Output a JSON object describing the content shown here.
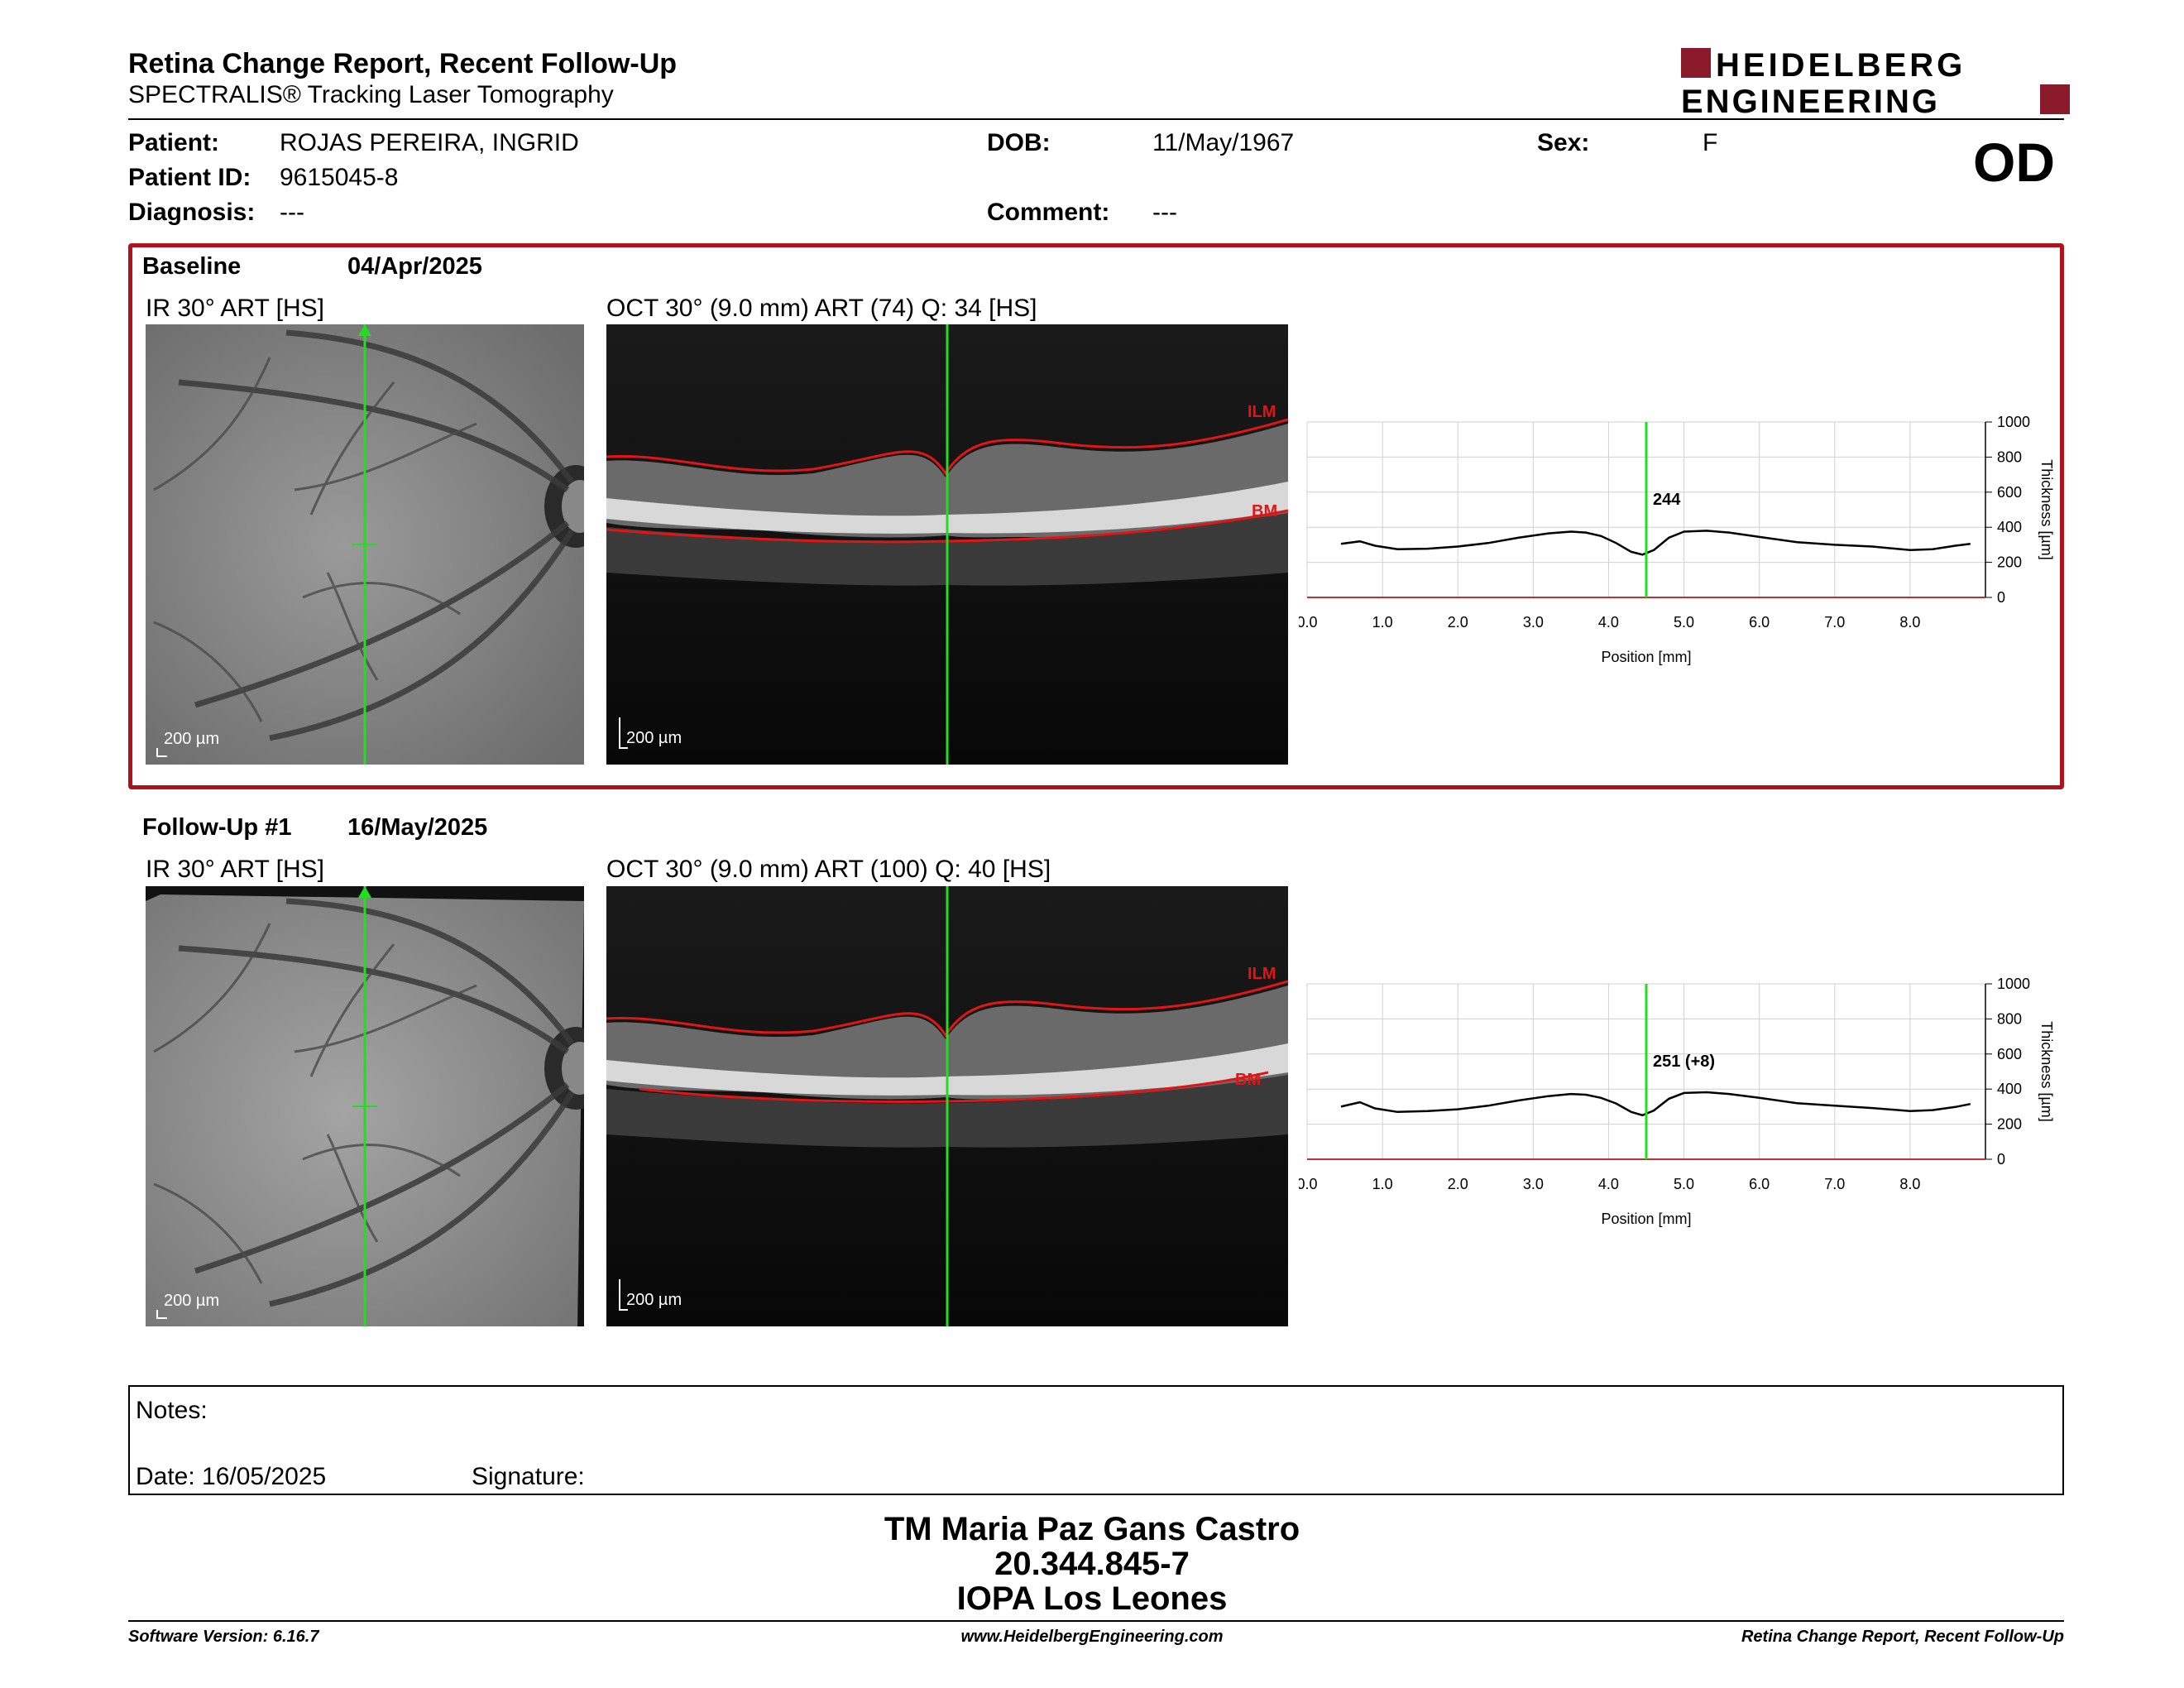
{
  "header": {
    "title": "Retina Change Report, Recent Follow-Up",
    "subtitle": "SPECTRALIS® Tracking Laser Tomography",
    "logo_line1": "HEIDELBERG",
    "logo_line2": "ENGINEERING",
    "eye": "OD"
  },
  "patient": {
    "patient_label": "Patient:",
    "patient_value": "ROJAS PEREIRA, INGRID",
    "id_label": "Patient ID:",
    "id_value": "9615045-8",
    "diagnosis_label": "Diagnosis:",
    "diagnosis_value": "---",
    "dob_label": "DOB:",
    "dob_value": "11/May/1967",
    "comment_label": "Comment:",
    "comment_value": "---",
    "sex_label": "Sex:",
    "sex_value": "F"
  },
  "baseline": {
    "label": "Baseline",
    "date": "04/Apr/2025",
    "ir_title": "IR 30° ART [HS]",
    "oct_title": "OCT 30° (9.0 mm) ART (74) Q: 34 [HS]",
    "scale": "200 µm",
    "ilm": "ILM",
    "bm": "BM",
    "cursor_value": "244"
  },
  "followup": {
    "label": "Follow-Up #1",
    "date": "16/May/2025",
    "ir_title": "IR 30° ART [HS]",
    "oct_title": "OCT 30° (9.0 mm) ART (100) Q: 40 [HS]",
    "scale": "200 µm",
    "ilm": "ILM",
    "bm": "BM",
    "cursor_value": "251 (+8)"
  },
  "chart_data": [
    {
      "type": "line",
      "xlabel": "Position [mm]",
      "ylabel": "Thickness [µm]",
      "xlim": [
        0,
        9
      ],
      "ylim": [
        0,
        1000
      ],
      "x_ticks": [
        "0.0",
        "1.0",
        "2.0",
        "3.0",
        "4.0",
        "5.0",
        "6.0",
        "7.0",
        "8.0"
      ],
      "y_ticks": [
        "0",
        "200",
        "400",
        "600",
        "800",
        "1000"
      ],
      "cursor_x": 4.5,
      "x": [
        0.45,
        0.7,
        0.9,
        1.2,
        1.6,
        2.0,
        2.4,
        2.8,
        3.2,
        3.5,
        3.7,
        3.9,
        4.1,
        4.3,
        4.45,
        4.6,
        4.8,
        5.0,
        5.3,
        5.6,
        6.0,
        6.5,
        7.0,
        7.5,
        8.0,
        8.3,
        8.6,
        8.8
      ],
      "values": [
        305,
        320,
        295,
        275,
        278,
        290,
        310,
        340,
        365,
        375,
        370,
        350,
        310,
        260,
        244,
        270,
        340,
        375,
        380,
        370,
        345,
        315,
        300,
        290,
        270,
        275,
        295,
        305
      ]
    },
    {
      "type": "line",
      "xlabel": "Position [mm]",
      "ylabel": "Thickness [µm]",
      "xlim": [
        0,
        9
      ],
      "ylim": [
        0,
        1000
      ],
      "x_ticks": [
        "0.0",
        "1.0",
        "2.0",
        "3.0",
        "4.0",
        "5.0",
        "6.0",
        "7.0",
        "8.0"
      ],
      "y_ticks": [
        "0",
        "200",
        "400",
        "600",
        "800",
        "1000"
      ],
      "cursor_x": 4.5,
      "x": [
        0.45,
        0.7,
        0.9,
        1.2,
        1.6,
        2.0,
        2.4,
        2.8,
        3.2,
        3.5,
        3.7,
        3.9,
        4.1,
        4.3,
        4.45,
        4.6,
        4.8,
        5.0,
        5.3,
        5.6,
        6.0,
        6.5,
        7.0,
        7.5,
        8.0,
        8.3,
        8.6,
        8.8
      ],
      "values": [
        300,
        325,
        290,
        270,
        275,
        285,
        305,
        335,
        360,
        372,
        368,
        350,
        318,
        270,
        251,
        278,
        345,
        378,
        382,
        372,
        350,
        320,
        305,
        292,
        275,
        280,
        298,
        315
      ]
    }
  ],
  "notes": {
    "notes_label": "Notes:",
    "date_label": "Date: 16/05/2025",
    "signature_label": "Signature:"
  },
  "signature": {
    "name": "TM Maria Paz Gans Castro",
    "id": "20.344.845-7",
    "org": "IOPA Los Leones"
  },
  "footer": {
    "software": "Software Version: 6.16.7",
    "website": "www.HeidelbergEngineering.com",
    "report": "Retina Change Report, Recent Follow-Up"
  },
  "colors": {
    "frame": "#b0121b",
    "logo": "#8b1a2b",
    "cursor": "#22dd22",
    "segmentation": "#e01515"
  }
}
